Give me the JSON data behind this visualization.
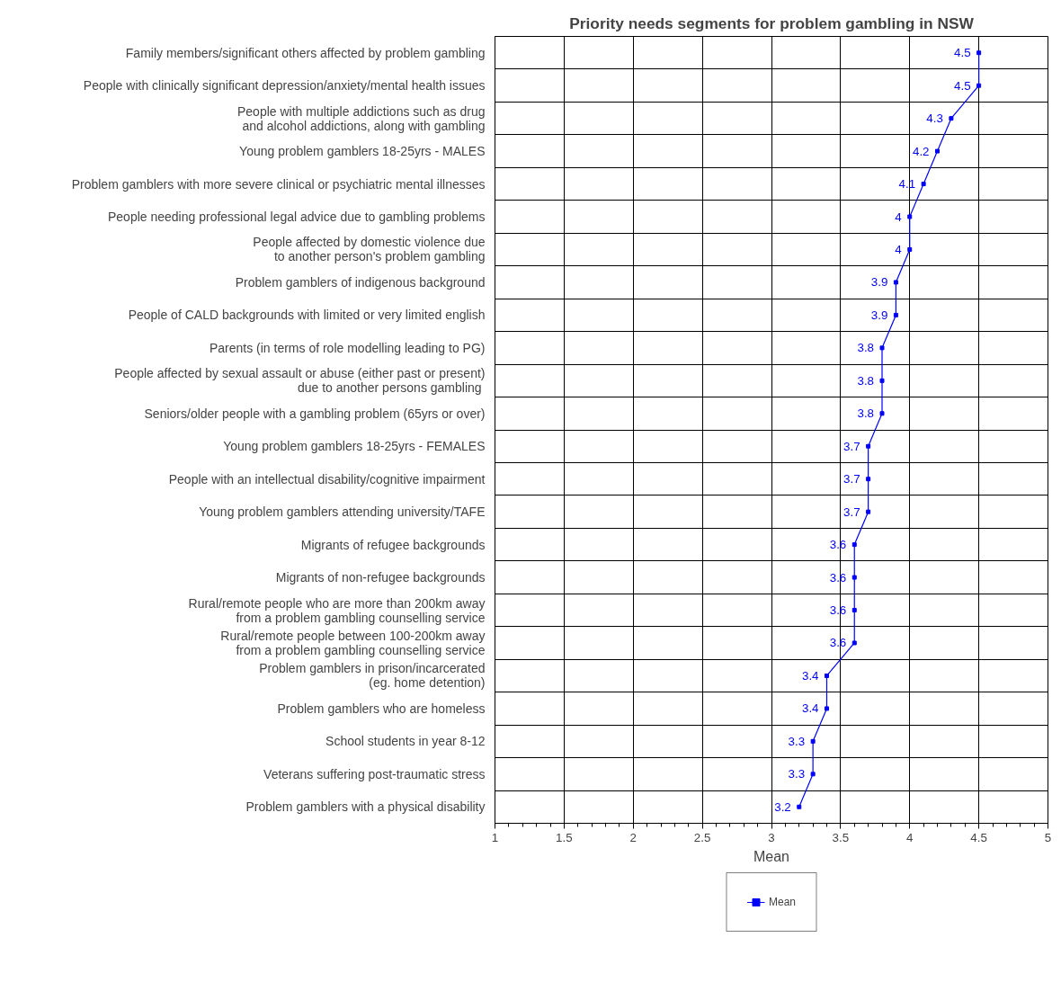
{
  "chart_data": {
    "type": "line",
    "orientation": "horizontal",
    "title": "Priority needs segments for problem gambling in NSW",
    "xlabel": "Mean",
    "categories": [
      "Family members/significant others affected by problem gambling",
      "People with clinically significant depression/anxiety/mental health issues",
      "People with multiple addictions such as drug\nand alcohol addictions, along with gambling",
      "Young problem gamblers 18-25yrs - MALES",
      "Problem gamblers with more severe clinical or psychiatric mental illnesses",
      "People needing professional legal advice due to gambling problems",
      "People affected by domestic violence due\nto another person's problem gambling",
      "Problem gamblers of indigenous background",
      "People of CALD backgrounds with limited or very limited english",
      "Parents (in terms of role modelling leading to PG)",
      "People affected by sexual assault or abuse (either past or present)\ndue to another persons  gambling",
      "Seniors/older people with a gambling problem (65yrs or over)",
      "Young problem gamblers 18-25yrs - FEMALES",
      "People with an intellectual disability/cognitive impairment",
      "Young problem gamblers attending university/TAFE",
      "Migrants of refugee backgrounds",
      "Migrants of non-refugee backgrounds",
      "Rural/remote people who are more than 200km away\nfrom a problem gambling counselling service",
      "Rural/remote people between 100-200km away\nfrom a problem gambling counselling service",
      "Problem gamblers in prison/incarcerated\n(eg. home detention)",
      "Problem gamblers who are homeless",
      "School students in year 8-12",
      "Veterans suffering post-traumatic stress",
      "Problem gamblers with a physical disability"
    ],
    "series": [
      {
        "name": "Mean",
        "color": "#0000ff",
        "values": [
          4.5,
          4.5,
          4.3,
          4.2,
          4.1,
          4,
          4,
          3.9,
          3.9,
          3.8,
          3.8,
          3.8,
          3.7,
          3.7,
          3.7,
          3.6,
          3.6,
          3.6,
          3.6,
          3.4,
          3.4,
          3.3,
          3.3,
          3.2
        ]
      }
    ],
    "xlim": [
      1,
      5
    ],
    "xticks": [
      1,
      1.5,
      2,
      2.5,
      3,
      3.5,
      4,
      4.5,
      5
    ],
    "grid": true,
    "marker": "square",
    "line_style": "solid",
    "data_labels": true,
    "legend": "bottom"
  }
}
